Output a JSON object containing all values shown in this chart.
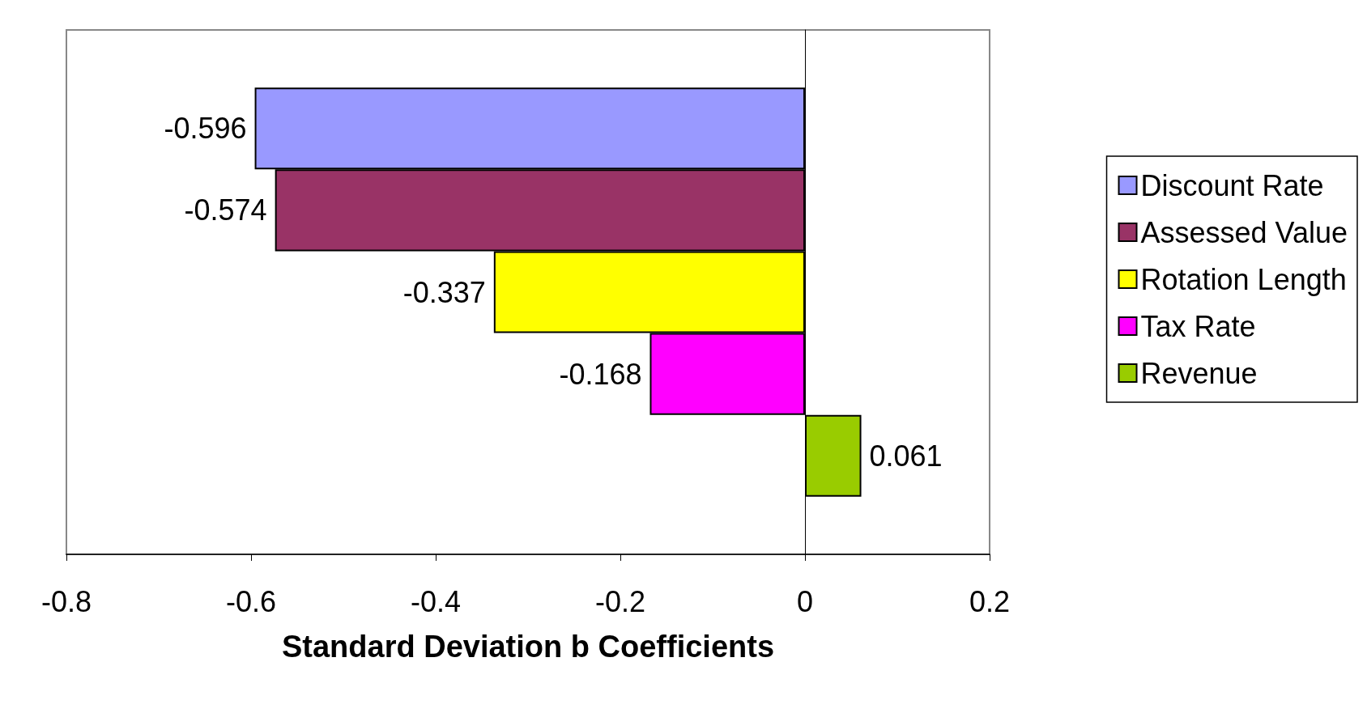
{
  "chart_data": {
    "type": "bar",
    "orientation": "horizontal",
    "xlabel": "Standard Deviation b Coefficients",
    "categories": [
      null
    ],
    "series": [
      {
        "name": "Discount Rate",
        "color": "#9999ff",
        "values": [
          -0.596
        ]
      },
      {
        "name": "Assessed Value",
        "color": "#993366",
        "values": [
          -0.574
        ]
      },
      {
        "name": "Rotation Length",
        "color": "#ffff00",
        "values": [
          -0.337
        ]
      },
      {
        "name": "Tax Rate",
        "color": "#ff00ff",
        "values": [
          -0.168
        ]
      },
      {
        "name": "Revenue",
        "color": "#99cc00",
        "values": [
          0.061
        ]
      }
    ],
    "xlim": [
      -0.8,
      0.2
    ],
    "xticks": [
      -0.8,
      -0.6,
      -0.4,
      -0.2,
      0,
      0.2
    ],
    "data_labels": true,
    "legend": "right",
    "tick_labels": "x"
  }
}
